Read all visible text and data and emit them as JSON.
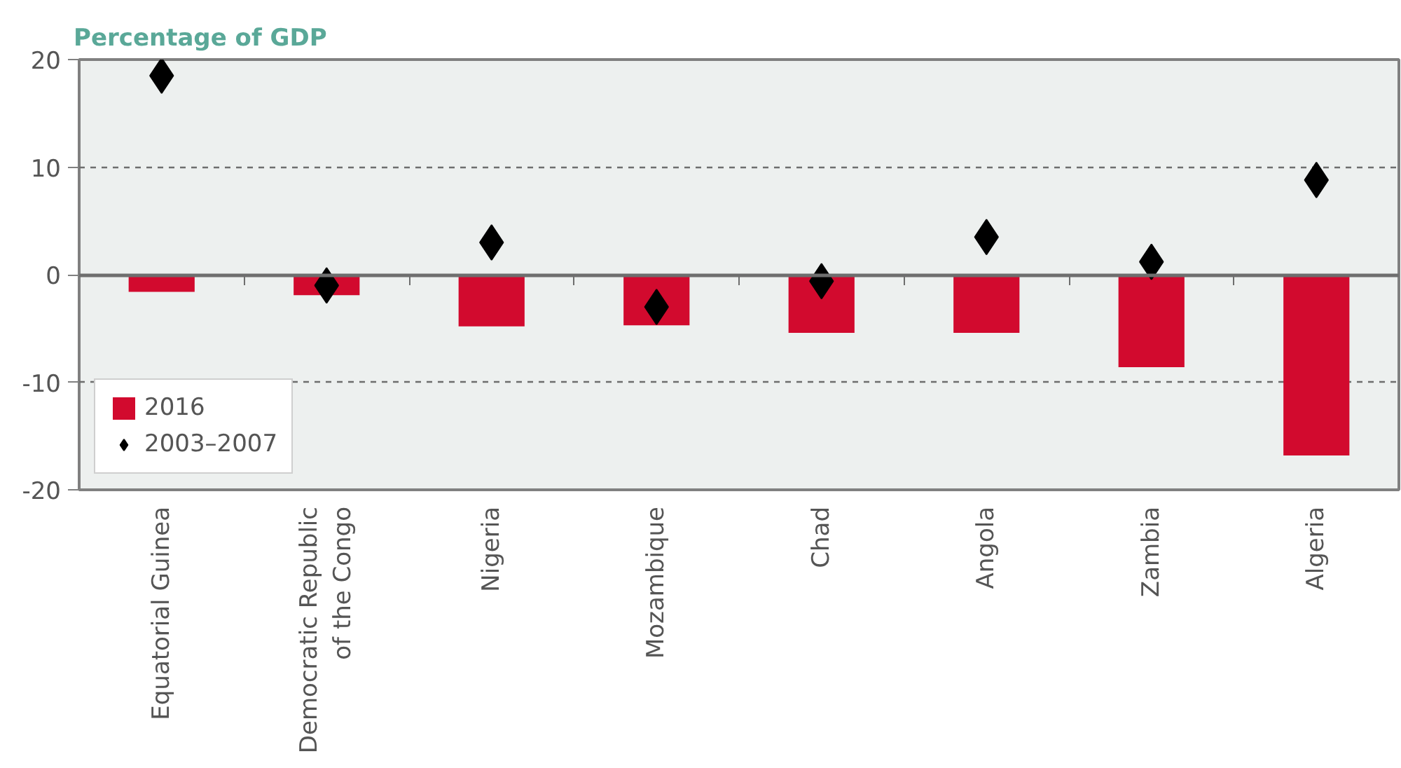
{
  "chart_data": {
    "type": "bar",
    "ylabel": "Percentage of GDP",
    "categories": [
      "Equatorial Guinea",
      "Democratic Republic of the Congo",
      "Nigeria",
      "Mozambique",
      "Chad",
      "Angola",
      "Zambia",
      "Algeria"
    ],
    "series": [
      {
        "name": "2016",
        "color": "#d20a2e",
        "values": [
          -1.6,
          -1.9,
          -4.8,
          -4.7,
          -5.4,
          -5.4,
          -8.6,
          -16.8
        ]
      },
      {
        "name": "2003–2007",
        "type": "scatter",
        "color": "#000000",
        "values": [
          18.5,
          -1.0,
          3.0,
          -3.0,
          -0.6,
          3.5,
          1.2,
          8.8
        ]
      }
    ],
    "marker": "diamond",
    "ylim": [
      -20,
      20
    ],
    "yticks": [
      -20,
      -10,
      0,
      10,
      20
    ],
    "grid": "y",
    "legend": "bottom left"
  }
}
